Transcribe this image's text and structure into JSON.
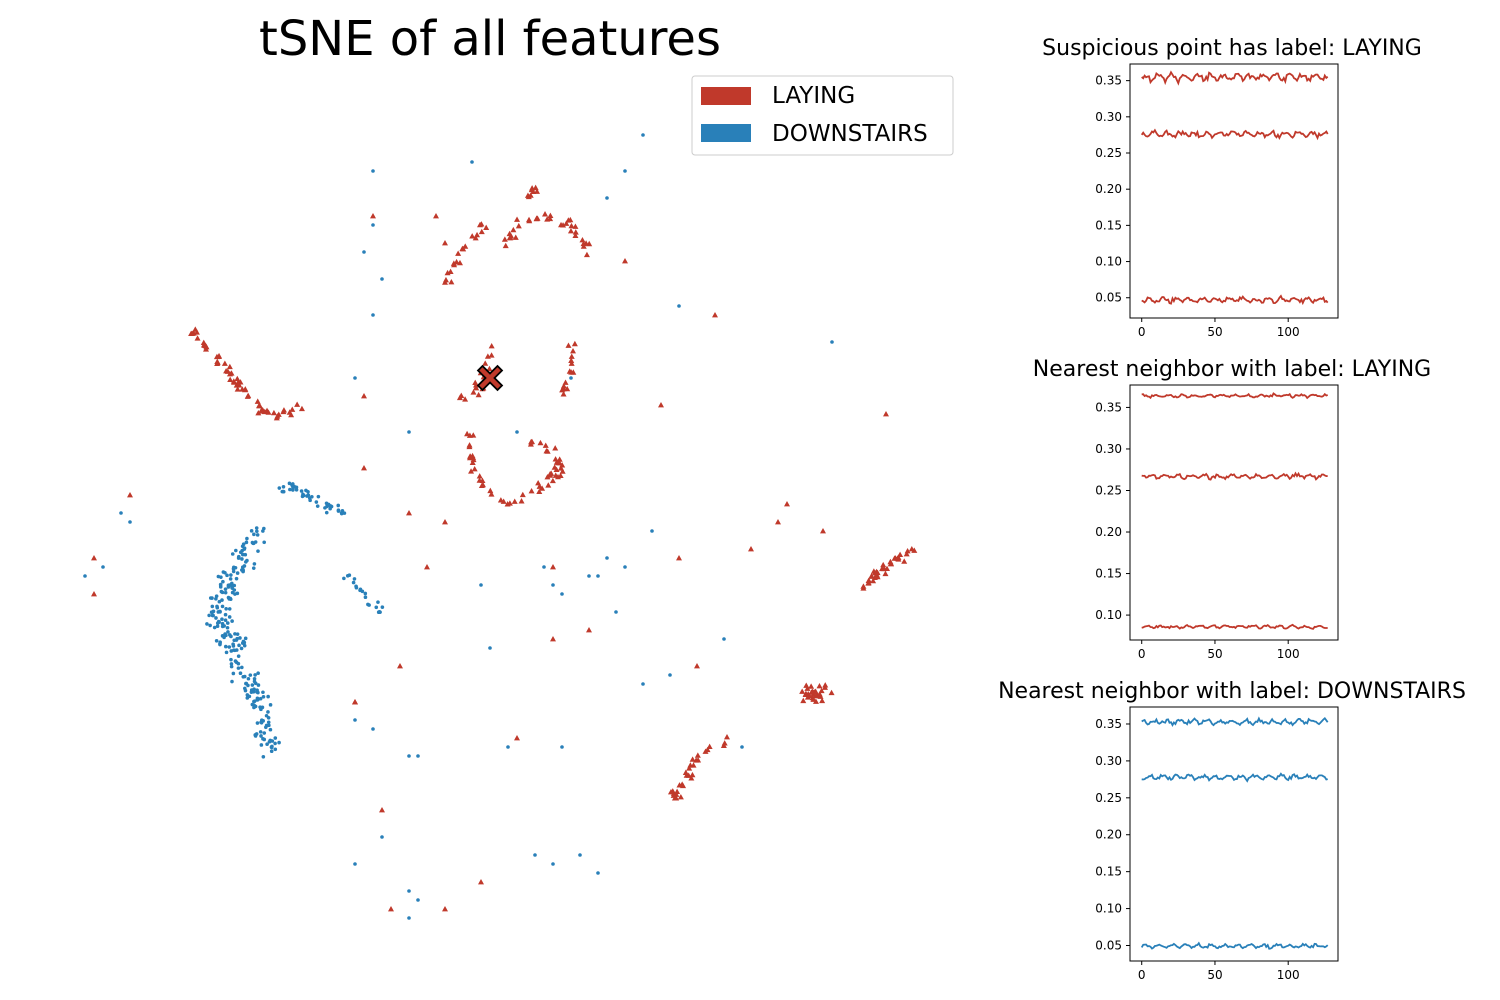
{
  "colors": {
    "laying": "#c0392b",
    "downstairs": "#2980b9",
    "axis": "#000000",
    "legend_border": "#cccccc",
    "background": "#ffffff"
  },
  "chart_data": [
    {
      "type": "scatter",
      "title": "tSNE of all features",
      "xlabel": "",
      "ylabel": "",
      "axes_visible": false,
      "legend": {
        "placement": "top-right",
        "entries": [
          {
            "label": "LAYING",
            "color": "#c0392b"
          },
          {
            "label": "DOWNSTAIRS",
            "color": "#2980b9"
          }
        ]
      },
      "highlight": {
        "label": "suspicious point",
        "class": "LAYING",
        "marker": "X",
        "x": 0.5,
        "y": 0.68
      },
      "series": [
        {
          "name": "LAYING",
          "marker": "triangle",
          "clusters": [
            {
              "shape": "arc",
              "points": [
                [
                  0.17,
                  0.73
                ],
                [
                  0.2,
                  0.7
                ],
                [
                  0.23,
                  0.66
                ],
                [
                  0.25,
                  0.64
                ],
                [
                  0.28,
                  0.64
                ],
                [
                  0.29,
                  0.65
                ]
              ],
              "density": 60
            },
            {
              "shape": "arc",
              "points": [
                [
                  0.45,
                  0.79
                ],
                [
                  0.47,
                  0.82
                ],
                [
                  0.49,
                  0.85
                ],
                [
                  0.5,
                  0.85
                ]
              ],
              "density": 20
            },
            {
              "shape": "arc",
              "points": [
                [
                  0.52,
                  0.83
                ],
                [
                  0.53,
                  0.85
                ],
                [
                  0.56,
                  0.86
                ],
                [
                  0.59,
                  0.85
                ],
                [
                  0.61,
                  0.82
                ]
              ],
              "density": 35
            },
            {
              "shape": "arc",
              "points": [
                [
                  0.54,
                  0.88
                ],
                [
                  0.55,
                  0.89
                ]
              ],
              "density": 8
            },
            {
              "shape": "arc",
              "points": [
                [
                  0.5,
                  0.72
                ],
                [
                  0.5,
                  0.69
                ],
                [
                  0.48,
                  0.66
                ],
                [
                  0.46,
                  0.66
                ]
              ],
              "density": 20
            },
            {
              "shape": "arc",
              "points": [
                [
                  0.59,
                  0.72
                ],
                [
                  0.59,
                  0.69
                ],
                [
                  0.58,
                  0.66
                ]
              ],
              "density": 15
            },
            {
              "shape": "arc",
              "points": [
                [
                  0.48,
                  0.62
                ],
                [
                  0.48,
                  0.58
                ],
                [
                  0.5,
                  0.55
                ],
                [
                  0.53,
                  0.54
                ],
                [
                  0.56,
                  0.56
                ],
                [
                  0.58,
                  0.58
                ],
                [
                  0.57,
                  0.6
                ],
                [
                  0.54,
                  0.61
                ]
              ],
              "density": 60
            },
            {
              "shape": "arc",
              "points": [
                [
                  0.91,
                  0.45
                ],
                [
                  0.94,
                  0.47
                ],
                [
                  0.97,
                  0.49
                ]
              ],
              "density": 35
            },
            {
              "shape": "cluster",
              "points": [
                [
                  0.86,
                  0.33
                ]
              ],
              "spread": 0.025,
              "density": 30
            },
            {
              "shape": "arc",
              "points": [
                [
                  0.7,
                  0.21
                ],
                [
                  0.72,
                  0.24
                ],
                [
                  0.74,
                  0.27
                ],
                [
                  0.76,
                  0.28
                ]
              ],
              "density": 30
            },
            {
              "shape": "scatter",
              "points": [
                [
                  0.37,
                  0.86
                ],
                [
                  0.44,
                  0.86
                ],
                [
                  0.45,
                  0.83
                ],
                [
                  0.65,
                  0.81
                ],
                [
                  0.75,
                  0.75
                ],
                [
                  0.36,
                  0.66
                ],
                [
                  0.69,
                  0.65
                ],
                [
                  0.94,
                  0.64
                ],
                [
                  0.1,
                  0.55
                ],
                [
                  0.41,
                  0.53
                ],
                [
                  0.45,
                  0.52
                ],
                [
                  0.83,
                  0.54
                ],
                [
                  0.82,
                  0.52
                ],
                [
                  0.87,
                  0.51
                ],
                [
                  0.06,
                  0.48
                ],
                [
                  0.06,
                  0.44
                ],
                [
                  0.43,
                  0.47
                ],
                [
                  0.71,
                  0.48
                ],
                [
                  0.79,
                  0.49
                ],
                [
                  0.4,
                  0.36
                ],
                [
                  0.57,
                  0.39
                ],
                [
                  0.61,
                  0.4
                ],
                [
                  0.35,
                  0.32
                ],
                [
                  0.53,
                  0.28
                ],
                [
                  0.38,
                  0.2
                ],
                [
                  0.49,
                  0.12
                ],
                [
                  0.45,
                  0.09
                ],
                [
                  0.39,
                  0.09
                ],
                [
                  0.35,
                  0.32
                ],
                [
                  0.73,
                  0.36
                ],
                [
                  0.36,
                  0.58
                ],
                [
                  0.57,
                  0.47
                ]
              ]
            }
          ]
        },
        {
          "name": "DOWNSTAIRS",
          "marker": "dot",
          "clusters": [
            {
              "shape": "arc",
              "points": [
                [
                  0.26,
                  0.55
                ],
                [
                  0.28,
                  0.56
                ],
                [
                  0.31,
                  0.54
                ],
                [
                  0.34,
                  0.53
                ]
              ],
              "density": 45
            },
            {
              "shape": "arc",
              "points": [
                [
                  0.24,
                  0.51
                ],
                [
                  0.22,
                  0.47
                ],
                [
                  0.2,
                  0.43
                ],
                [
                  0.2,
                  0.4
                ],
                [
                  0.22,
                  0.38
                ]
              ],
              "density": 150,
              "width": 0.02
            },
            {
              "shape": "arc",
              "points": [
                [
                  0.22,
                  0.36
                ],
                [
                  0.24,
                  0.33
                ],
                [
                  0.25,
                  0.29
                ],
                [
                  0.26,
                  0.26
                ]
              ],
              "density": 90,
              "width": 0.018
            },
            {
              "shape": "arc",
              "points": [
                [
                  0.34,
                  0.46
                ],
                [
                  0.36,
                  0.44
                ],
                [
                  0.38,
                  0.42
                ]
              ],
              "density": 20
            },
            {
              "shape": "scatter",
              "points": [
                [
                  0.67,
                  0.95
                ],
                [
                  0.37,
                  0.91
                ],
                [
                  0.48,
                  0.92
                ],
                [
                  0.65,
                  0.91
                ],
                [
                  0.63,
                  0.88
                ],
                [
                  0.37,
                  0.85
                ],
                [
                  0.36,
                  0.82
                ],
                [
                  0.38,
                  0.79
                ],
                [
                  0.37,
                  0.75
                ],
                [
                  0.71,
                  0.76
                ],
                [
                  0.88,
                  0.72
                ],
                [
                  0.35,
                  0.68
                ],
                [
                  0.59,
                  0.68
                ],
                [
                  0.41,
                  0.62
                ],
                [
                  0.53,
                  0.62
                ],
                [
                  0.09,
                  0.53
                ],
                [
                  0.1,
                  0.52
                ],
                [
                  0.68,
                  0.51
                ],
                [
                  0.56,
                  0.47
                ],
                [
                  0.57,
                  0.45
                ],
                [
                  0.58,
                  0.44
                ],
                [
                  0.61,
                  0.46
                ],
                [
                  0.63,
                  0.48
                ],
                [
                  0.62,
                  0.46
                ],
                [
                  0.65,
                  0.47
                ],
                [
                  0.49,
                  0.45
                ],
                [
                  0.05,
                  0.46
                ],
                [
                  0.07,
                  0.47
                ],
                [
                  0.64,
                  0.42
                ],
                [
                  0.5,
                  0.38
                ],
                [
                  0.76,
                  0.39
                ],
                [
                  0.7,
                  0.35
                ],
                [
                  0.67,
                  0.34
                ],
                [
                  0.35,
                  0.3
                ],
                [
                  0.37,
                  0.29
                ],
                [
                  0.41,
                  0.26
                ],
                [
                  0.42,
                  0.26
                ],
                [
                  0.52,
                  0.27
                ],
                [
                  0.58,
                  0.27
                ],
                [
                  0.78,
                  0.27
                ],
                [
                  0.38,
                  0.17
                ],
                [
                  0.35,
                  0.14
                ],
                [
                  0.55,
                  0.15
                ],
                [
                  0.57,
                  0.14
                ],
                [
                  0.6,
                  0.15
                ],
                [
                  0.62,
                  0.13
                ],
                [
                  0.41,
                  0.11
                ],
                [
                  0.42,
                  0.1
                ],
                [
                  0.41,
                  0.08
                ]
              ]
            }
          ]
        }
      ]
    },
    {
      "type": "line",
      "title": "Suspicious point has label: LAYING",
      "xlabel": "",
      "ylabel": "",
      "xlim": [
        -8,
        134
      ],
      "ylim": [
        0.022,
        0.373
      ],
      "xticks": [
        0,
        50,
        100
      ],
      "yticks": [
        0.05,
        0.1,
        0.15,
        0.2,
        0.25,
        0.3,
        0.35
      ],
      "series": [
        {
          "color": "#c0392b",
          "base": 0.355,
          "amp": 0.006
        },
        {
          "color": "#c0392b",
          "base": 0.276,
          "amp": 0.005
        },
        {
          "color": "#c0392b",
          "base": 0.047,
          "amp": 0.004
        }
      ]
    },
    {
      "type": "line",
      "title": "Nearest neighbor with label: LAYING",
      "xlabel": "",
      "ylabel": "",
      "xlim": [
        -8,
        134
      ],
      "ylim": [
        0.07,
        0.377
      ],
      "xticks": [
        0,
        50,
        100
      ],
      "yticks": [
        0.1,
        0.15,
        0.2,
        0.25,
        0.3,
        0.35
      ],
      "series": [
        {
          "color": "#c0392b",
          "base": 0.364,
          "amp": 0.002
        },
        {
          "color": "#c0392b",
          "base": 0.267,
          "amp": 0.003
        },
        {
          "color": "#c0392b",
          "base": 0.086,
          "amp": 0.002
        }
      ]
    },
    {
      "type": "line",
      "title": "Nearest neighbor with label: DOWNSTAIRS",
      "xlabel": "",
      "ylabel": "",
      "xlim": [
        -8,
        134
      ],
      "ylim": [
        0.029,
        0.373
      ],
      "xticks": [
        0,
        50,
        100
      ],
      "yticks": [
        0.05,
        0.1,
        0.15,
        0.2,
        0.25,
        0.3,
        0.35
      ],
      "series": [
        {
          "color": "#2980b9",
          "base": 0.353,
          "amp": 0.004
        },
        {
          "color": "#2980b9",
          "base": 0.278,
          "amp": 0.004
        },
        {
          "color": "#2980b9",
          "base": 0.049,
          "amp": 0.003
        }
      ]
    }
  ]
}
